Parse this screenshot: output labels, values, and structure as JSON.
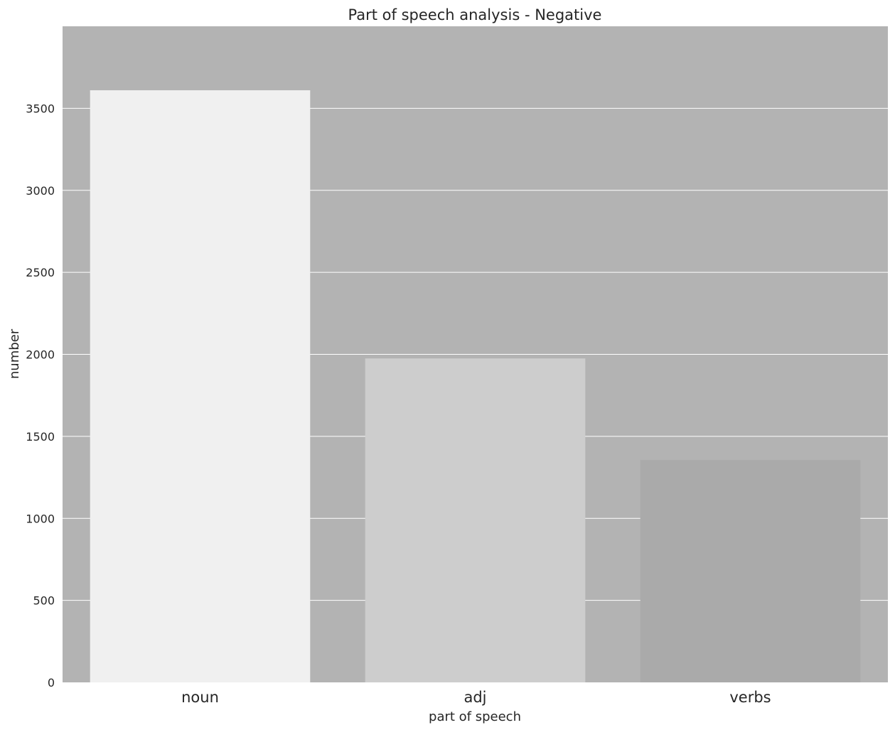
{
  "chart_data": {
    "type": "bar",
    "title": "Part of speech analysis - Negative",
    "xlabel": "part of speech",
    "ylabel": "number",
    "categories": [
      "noun",
      "adj",
      "verbs"
    ],
    "values": [
      3610,
      1975,
      1356
    ],
    "bar_colors": [
      "#f0f0f0",
      "#cdcdcd",
      "#aaaaaa"
    ],
    "ylim": [
      0,
      4000
    ],
    "yticks": [
      0,
      500,
      1000,
      1500,
      2000,
      2500,
      3000,
      3500
    ],
    "ytick_labels": [
      "0",
      "500",
      "1000",
      "1500",
      "2000",
      "2500",
      "3000",
      "3500"
    ],
    "grid": true,
    "grid_color": "#ffffff",
    "plot_background": "#b3b3b3"
  }
}
